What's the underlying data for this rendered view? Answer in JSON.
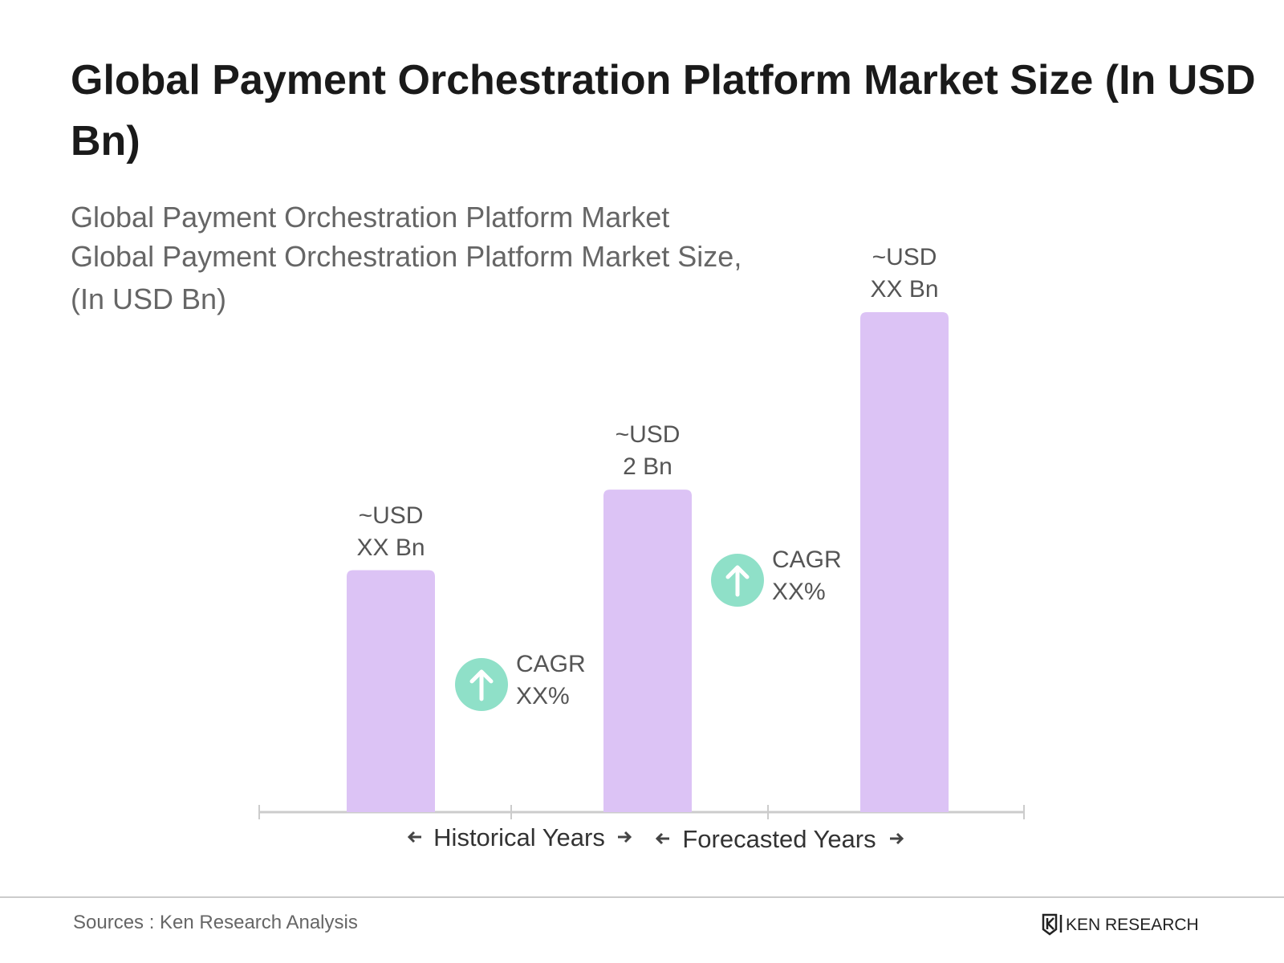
{
  "chart_data": {
    "type": "bar",
    "title": "Global Payment Orchestration Platform Market Size (In USD Bn)",
    "subtitle": [
      "Global Payment Orchestration Platform Market",
      "Global Payment Orchestration Platform Market Size,",
      "(In USD Bn)"
    ],
    "categories": [
      null,
      null,
      null
    ],
    "values": [
      1.5,
      2,
      3.1
    ],
    "value_labels": [
      "~USD XX Bn",
      "~USD 2 Bn",
      "~USD XX Bn"
    ],
    "color": "#dcc3f5",
    "cagr_labels": [
      "CAGR XX%",
      "CAGR XX%"
    ],
    "cagr_color": "#8fe0c8",
    "period_labels": [
      "Historical Years",
      "Forecasted Years"
    ],
    "source": "Sources : Ken Research Analysis",
    "logo": "KEN RESEARCH"
  }
}
